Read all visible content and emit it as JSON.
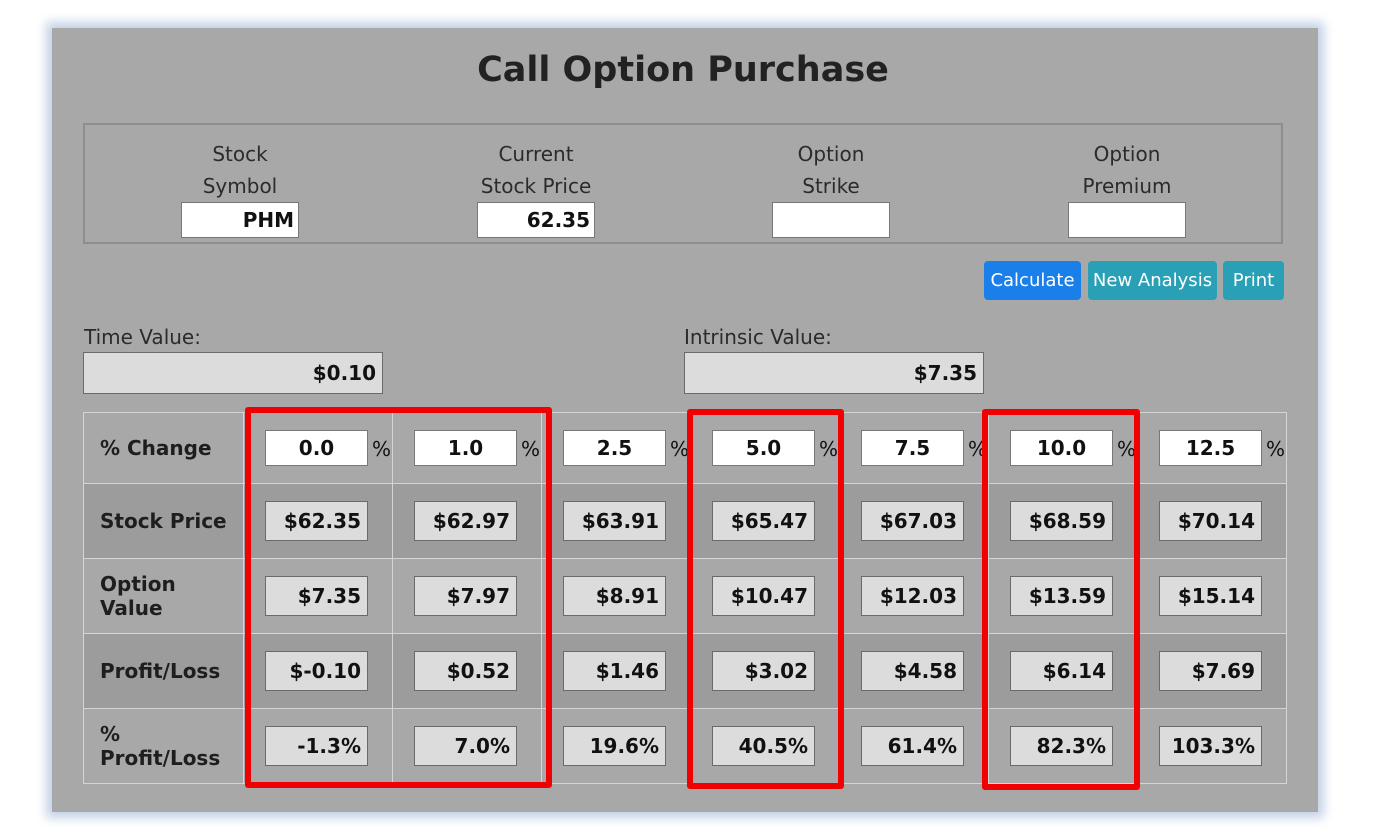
{
  "title": "Call Option Purchase",
  "fields": [
    {
      "line1": "Stock",
      "line2": "Symbol",
      "value": "PHM"
    },
    {
      "line1": "Current",
      "line2": "Stock Price",
      "value": "62.35"
    },
    {
      "line1": "Option",
      "line2": "Strike",
      "value": ""
    },
    {
      "line1": "Option",
      "line2": "Premium",
      "value": ""
    }
  ],
  "buttons": {
    "calculate": "Calculate",
    "new_analysis": "New Analysis",
    "print": "Print"
  },
  "time_value": {
    "label": "Time Value:",
    "value": "$0.10"
  },
  "intrinsic_value": {
    "label": "Intrinsic Value:",
    "value": "$7.35"
  },
  "table": {
    "row_labels": [
      "% Change",
      "Stock Price",
      "Option Value",
      "Profit/Loss",
      "% Profit/Loss"
    ],
    "percent_sign": "%",
    "pct_change": [
      "0.0",
      "1.0",
      "2.5",
      "5.0",
      "7.5",
      "10.0",
      "12.5"
    ],
    "stock_price": [
      "$62.35",
      "$62.97",
      "$63.91",
      "$65.47",
      "$67.03",
      "$68.59",
      "$70.14"
    ],
    "option_value": [
      "$7.35",
      "$7.97",
      "$8.91",
      "$10.47",
      "$12.03",
      "$13.59",
      "$15.14"
    ],
    "profit_loss": [
      "$-0.10",
      "$0.52",
      "$1.46",
      "$3.02",
      "$4.58",
      "$6.14",
      "$7.69"
    ],
    "pct_profit_loss": [
      "-1.3%",
      "7.0%",
      "19.6%",
      "40.5%",
      "61.4%",
      "82.3%",
      "103.3%"
    ]
  },
  "highlight_color": "#f00000"
}
